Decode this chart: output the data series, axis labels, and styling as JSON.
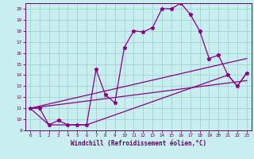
{
  "xlabel": "Windchill (Refroidissement éolien,°C)",
  "bg_color": "#c8eef0",
  "line_color": "#880088",
  "grid_color": "#99cccc",
  "axis_color": "#660066",
  "xlim": [
    -0.5,
    23.5
  ],
  "ylim": [
    9,
    20.5
  ],
  "xticks": [
    0,
    1,
    2,
    3,
    4,
    5,
    6,
    7,
    8,
    9,
    10,
    11,
    12,
    13,
    14,
    15,
    16,
    17,
    18,
    19,
    20,
    21,
    22,
    23
  ],
  "yticks": [
    9,
    10,
    11,
    12,
    13,
    14,
    15,
    16,
    17,
    18,
    19,
    20
  ],
  "series1_x": [
    0,
    1,
    2,
    3,
    4,
    5,
    6,
    7,
    8,
    9,
    10,
    11,
    12,
    13,
    14,
    15,
    16,
    17,
    18,
    19,
    20,
    21,
    22,
    23
  ],
  "series1_y": [
    11,
    11,
    9.5,
    9.9,
    9.5,
    9.5,
    9.5,
    14.5,
    12.2,
    11.5,
    16.5,
    18,
    17.9,
    18.3,
    20,
    20,
    20.5,
    19.5,
    18,
    15.5,
    15.8,
    14,
    13,
    14.2
  ],
  "line1_x": [
    0,
    2,
    6,
    21,
    22,
    23
  ],
  "line1_y": [
    11,
    9.5,
    9.5,
    14,
    13,
    14.2
  ],
  "line2_x": [
    0,
    23
  ],
  "line2_y": [
    11,
    15.5
  ],
  "line3_x": [
    0,
    23
  ],
  "line3_y": [
    11,
    13.5
  ]
}
